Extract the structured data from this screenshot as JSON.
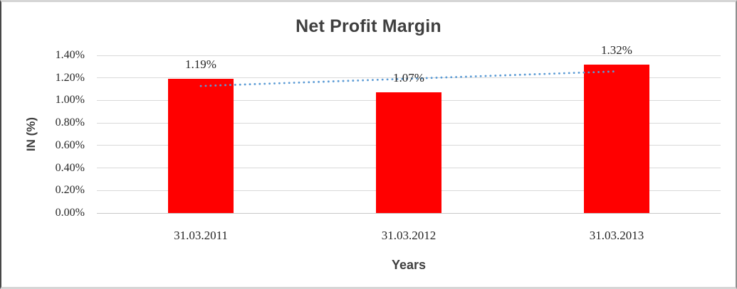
{
  "chart_data": {
    "type": "bar",
    "title": "Net Profit Margin",
    "xlabel": "Years",
    "ylabel": "IN (%)",
    "categories": [
      "31.03.2011",
      "31.03.2012",
      "31.03.2013"
    ],
    "values": [
      1.19,
      1.07,
      1.32
    ],
    "data_labels": [
      "1.19%",
      "1.07%",
      "1.32%"
    ],
    "y_ticks": [
      "1.40%",
      "1.20%",
      "1.00%",
      "0.80%",
      "0.60%",
      "0.40%",
      "0.20%",
      "0.00%"
    ],
    "y_tick_values": [
      1.4,
      1.2,
      1.0,
      0.8,
      0.6,
      0.4,
      0.2,
      0.0
    ],
    "ylim": [
      0,
      1.4
    ],
    "grid": true,
    "legend": false,
    "bar_color": "#ff0000",
    "trendline": {
      "style": "dotted",
      "color": "#5b9bd5",
      "start_value": 1.128,
      "end_value": 1.258
    }
  }
}
